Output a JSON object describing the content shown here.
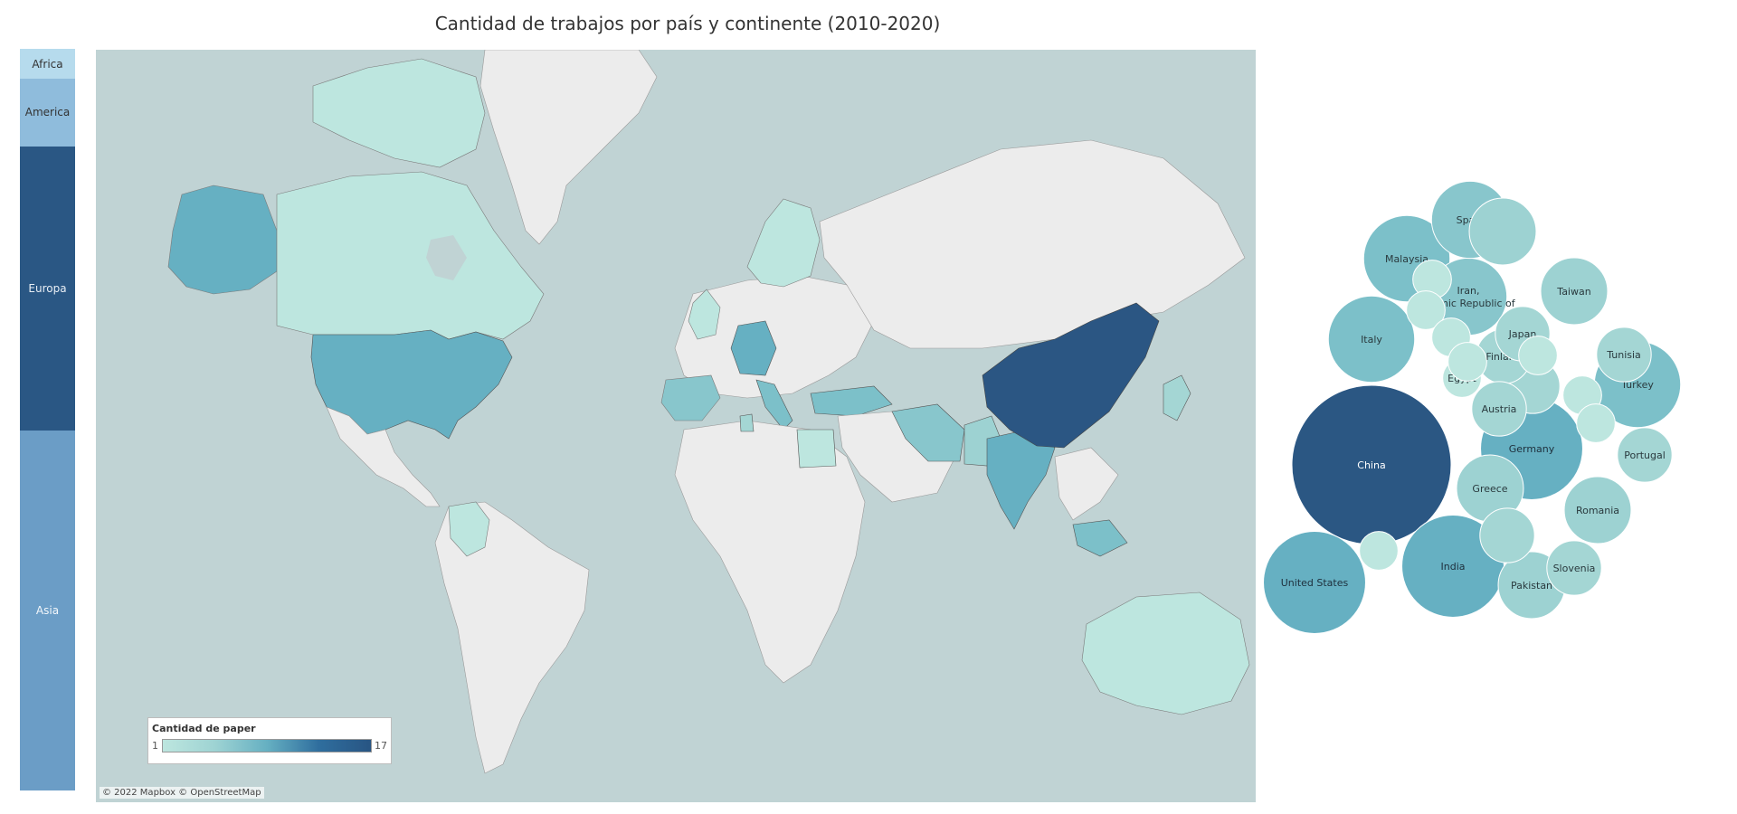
{
  "title": "Cantidad de trabajos por país y continente (2010-2020)",
  "continents": [
    {
      "label": "Africa",
      "value_share": 0.04,
      "color": "#b6dbed",
      "text_color": "#333333"
    },
    {
      "label": "America",
      "value_share": 0.09,
      "color": "#8fbcdc",
      "text_color": "#333333"
    },
    {
      "label": "Europa",
      "value_share": 0.38,
      "color": "#2a5784",
      "text_color": "#e8eef5"
    },
    {
      "label": "Asia",
      "value_share": 0.48,
      "color": "#6b9dc6",
      "text_color": "#f3f7fb"
    }
  ],
  "legend": {
    "title": "Cantidad de paper",
    "min": "1",
    "max": "17",
    "color_low": "#bde6df",
    "color_high": "#285583"
  },
  "attribution": "© 2022 Mapbox © OpenStreetMap",
  "map_colors": {
    "water": "#c0d3d4",
    "land": "#ececec",
    "canada": "#bde6df",
    "usa": "#66b0c2",
    "china": "#2b5683",
    "india": "#66b0c2"
  },
  "chart_data": {
    "type": "bubble",
    "measure": "Cantidad de paper",
    "points": [
      {
        "country": "China",
        "label": "China",
        "value": 17,
        "color": "#2b5783"
      },
      {
        "country": "India",
        "label": "India",
        "value": 7,
        "color": "#66b0c2"
      },
      {
        "country": "United States",
        "label": "United States",
        "value": 7,
        "color": "#66b0c2"
      },
      {
        "country": "Germany",
        "label": "Germany",
        "value": 7,
        "color": "#66b0c2"
      },
      {
        "country": "Turkey",
        "label": "Turkey",
        "value": 5,
        "color": "#7cc0c9"
      },
      {
        "country": "Italy",
        "label": "Italy",
        "value": 5,
        "color": "#7cc0c9"
      },
      {
        "country": "Malaysia",
        "label": "Malaysia",
        "value": 5,
        "color": "#7cc0c9"
      },
      {
        "country": "Iran, Islamic Republic of",
        "label": "Iran, Islamic Republic of",
        "value": 4,
        "color": "#88c6cc"
      },
      {
        "country": "Spain",
        "label": "Spain",
        "value": 4,
        "color": "#88c6cc"
      },
      {
        "country": "Romania",
        "label": "Romania",
        "value": 3,
        "color": "#9dd2d2"
      },
      {
        "country": "Greece",
        "label": "Greece",
        "value": 3,
        "color": "#9dd2d2"
      },
      {
        "country": "Pakistan",
        "label": "Pakistan",
        "value": 3,
        "color": "#9dd2d2"
      },
      {
        "country": "Taiwan",
        "label": "Taiwan",
        "value": 3,
        "color": "#9dd2d2"
      },
      {
        "country": "",
        "label": "",
        "value": 3,
        "color": "#9dd2d2"
      },
      {
        "country": "",
        "label": "",
        "value": 2,
        "color": "#a4d6d4"
      },
      {
        "country": "",
        "label": "",
        "value": 2,
        "color": "#a4d6d4"
      },
      {
        "country": "Slovenia",
        "label": "Slovenia",
        "value": 2,
        "color": "#a4d6d4"
      },
      {
        "country": "Portugal",
        "label": "Portugal",
        "value": 2,
        "color": "#a4d6d4"
      },
      {
        "country": "Tunisia",
        "label": "Tunisia",
        "value": 2,
        "color": "#a4d6d4"
      },
      {
        "country": "Finland",
        "label": "Finland",
        "value": 2,
        "color": "#a4d6d4"
      },
      {
        "country": "Austria",
        "label": "Austria",
        "value": 2,
        "color": "#a4d6d4"
      },
      {
        "country": "Japan",
        "label": "Japan",
        "value": 2,
        "color": "#a4d6d4"
      },
      {
        "country": "Egypt",
        "label": "Egypt",
        "value": 1,
        "color": "#bde6df"
      },
      {
        "country": "",
        "label": "",
        "value": 1,
        "color": "#bde6df"
      },
      {
        "country": "",
        "label": "",
        "value": 1,
        "color": "#bde6df"
      },
      {
        "country": "",
        "label": "",
        "value": 1,
        "color": "#bde6df"
      },
      {
        "country": "",
        "label": "",
        "value": 1,
        "color": "#bde6df"
      },
      {
        "country": "",
        "label": "",
        "value": 1,
        "color": "#bde6df"
      },
      {
        "country": "",
        "label": "",
        "value": 1,
        "color": "#bde6df"
      },
      {
        "country": "",
        "label": "",
        "value": 1,
        "color": "#bde6df"
      },
      {
        "country": "",
        "label": "",
        "value": 1,
        "color": "#bde6df"
      }
    ]
  }
}
